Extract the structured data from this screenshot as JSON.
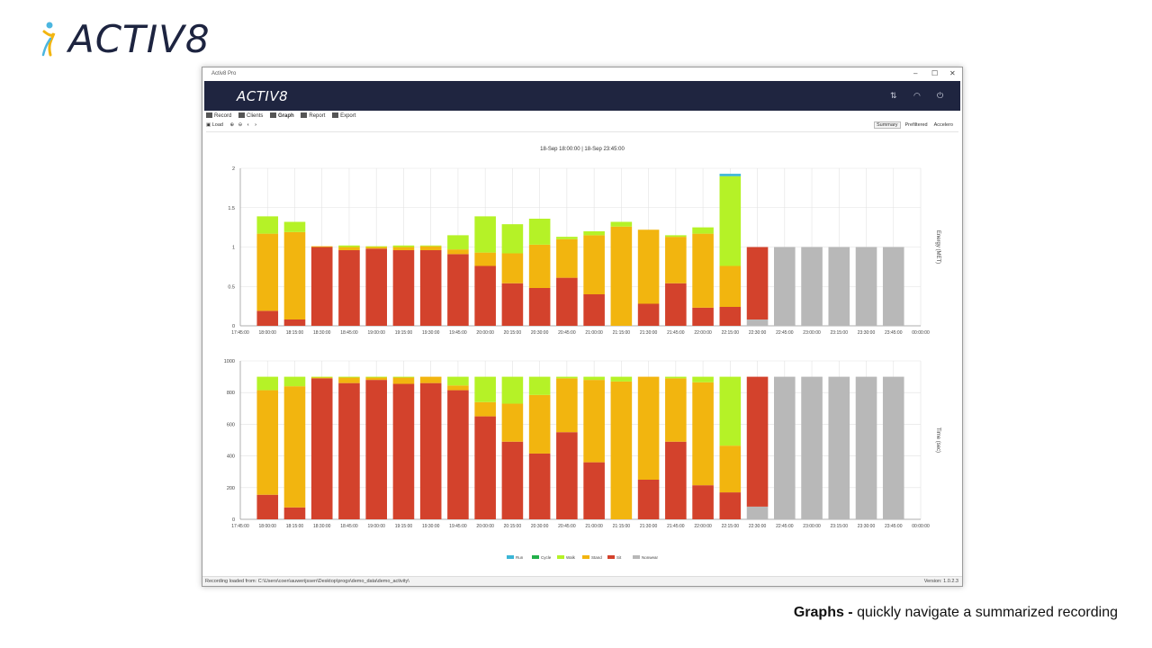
{
  "brand": {
    "name": "ACTIV8"
  },
  "caption": {
    "bold": "Graphs -",
    "text": " quickly navigate a summarized recording"
  },
  "window": {
    "title": "Activ8 Pro",
    "controls": {
      "minimize": "–",
      "maximize": "☐",
      "close": "✕"
    },
    "app_logo": "ACTIV8",
    "header_icons": [
      "sync-icon",
      "wifi-icon",
      "power-icon"
    ]
  },
  "menu": {
    "record": "Record",
    "clients": "Clients",
    "graph": "Graph",
    "report": "Report",
    "export": "Export"
  },
  "toolbar": {
    "load": "Load",
    "zoom_in": "⊕",
    "zoom_out": "⊖",
    "prev": "‹",
    "next": "›",
    "views": [
      "Summary",
      "Prefiltered",
      "Accelero"
    ],
    "selected_view": "Summary"
  },
  "status": {
    "path": "Recording loaded from: C:\\Users\\coen\\auwerijssen\\Desktop\\progs\\demo_data\\demo_activity\\",
    "version": "Version: 1.0.2.3"
  },
  "chart_data": {
    "type": "bar",
    "range_label": "18-Sep 18:00:00  |  18-Sep 23:45:00",
    "colors": {
      "Run": "#3bb6d6",
      "Cycle": "#22b04a",
      "Walk": "#b5f227",
      "Stand": "#f2b50f",
      "Sit": "#d3422c",
      "Nonwear": "#b8b8b8"
    },
    "legend": [
      "Run",
      "Cycle",
      "Walk",
      "Stand",
      "Sit",
      "Nonwear"
    ],
    "x_ticks": [
      "17:45:00",
      "18:00:00",
      "18:15:00",
      "18:30:00",
      "18:45:00",
      "19:00:00",
      "19:15:00",
      "19:30:00",
      "19:45:00",
      "20:00:00",
      "20:15:00",
      "20:30:00",
      "20:45:00",
      "21:00:00",
      "21:15:00",
      "21:30:00",
      "21:45:00",
      "22:00:00",
      "22:15:00",
      "22:30:00",
      "22:45:00",
      "23:00:00",
      "23:15:00",
      "23:30:00",
      "23:45:00",
      "00:00:00"
    ],
    "categories": [
      "18:00:00",
      "18:15:00",
      "18:30:00",
      "18:45:00",
      "19:00:00",
      "19:15:00",
      "19:30:00",
      "19:45:00",
      "20:00:00",
      "20:15:00",
      "20:30:00",
      "20:45:00",
      "21:00:00",
      "21:15:00",
      "21:30:00",
      "21:45:00",
      "22:00:00",
      "22:15:00",
      "22:30:00",
      "22:45:00",
      "23:00:00",
      "23:15:00",
      "23:30:00",
      "23:45:00"
    ],
    "charts": [
      {
        "ylabel": "Energy (MET)",
        "ylim": [
          0,
          2
        ],
        "y_ticks": [
          "0",
          "0.5",
          "1",
          "1.5",
          "2"
        ],
        "y_tick_values": [
          0,
          0.5,
          1,
          1.5,
          2
        ],
        "series": [
          {
            "name": "Nonwear",
            "values": [
              0,
              0,
              0,
              0,
              0,
              0,
              0,
              0,
              0,
              0,
              0,
              0,
              0,
              0,
              0,
              0,
              0,
              0,
              0.08,
              1,
              1,
              1,
              1,
              1
            ]
          },
          {
            "name": "Sit",
            "values": [
              0.19,
              0.08,
              1.0,
              0.96,
              0.98,
              0.96,
              0.96,
              0.91,
              0.76,
              0.54,
              0.48,
              0.61,
              0.4,
              0,
              0.28,
              0.54,
              0.23,
              0.24,
              0.92,
              0,
              0,
              0,
              0,
              0
            ]
          },
          {
            "name": "Stand",
            "values": [
              0.98,
              1.11,
              0.01,
              0.04,
              0.02,
              0.04,
              0.05,
              0.06,
              0.17,
              0.38,
              0.55,
              0.49,
              0.75,
              1.26,
              0.94,
              0.59,
              0.94,
              0.52,
              0,
              0,
              0,
              0,
              0,
              0
            ]
          },
          {
            "name": "Walk",
            "values": [
              0.22,
              0.13,
              0,
              0.02,
              0.01,
              0.02,
              0.01,
              0.18,
              0.46,
              0.37,
              0.33,
              0.03,
              0.05,
              0.06,
              0,
              0.02,
              0.08,
              1.14,
              0,
              0,
              0,
              0,
              0,
              0
            ]
          },
          {
            "name": "Cycle",
            "values": [
              0,
              0,
              0,
              0,
              0,
              0,
              0,
              0,
              0,
              0,
              0,
              0,
              0,
              0,
              0,
              0,
              0,
              0,
              0,
              0,
              0,
              0,
              0,
              0
            ]
          },
          {
            "name": "Run",
            "values": [
              0,
              0,
              0,
              0,
              0,
              0,
              0,
              0,
              0,
              0,
              0,
              0,
              0,
              0,
              0,
              0,
              0,
              0.03,
              0,
              0,
              0,
              0,
              0,
              0
            ]
          }
        ]
      },
      {
        "ylabel": "Time (sec)",
        "ylim": [
          0,
          1000
        ],
        "y_ticks": [
          "0",
          "200",
          "400",
          "600",
          "800",
          "1000"
        ],
        "y_tick_values": [
          0,
          200,
          400,
          600,
          800,
          1000
        ],
        "series": [
          {
            "name": "Nonwear",
            "values": [
              0,
              0,
              0,
              0,
              0,
              0,
              0,
              0,
              0,
              0,
              0,
              0,
              0,
              0,
              0,
              0,
              0,
              0,
              80,
              900,
              900,
              900,
              900,
              900
            ]
          },
          {
            "name": "Sit",
            "values": [
              155,
              75,
              890,
              860,
              880,
              855,
              860,
              815,
              650,
              490,
              415,
              550,
              360,
              0,
              250,
              490,
              215,
              170,
              820,
              0,
              0,
              0,
              0,
              0
            ]
          },
          {
            "name": "Stand",
            "values": [
              660,
              765,
              5,
              35,
              15,
              40,
              40,
              30,
              90,
              240,
              370,
              340,
              520,
              870,
              650,
              400,
              650,
              295,
              0,
              0,
              0,
              0,
              0,
              0
            ]
          },
          {
            "name": "Walk",
            "values": [
              85,
              60,
              5,
              5,
              5,
              5,
              0,
              55,
              160,
              170,
              115,
              10,
              20,
              30,
              0,
              10,
              35,
              435,
              0,
              0,
              0,
              0,
              0,
              0
            ]
          },
          {
            "name": "Cycle",
            "values": [
              0,
              0,
              0,
              0,
              0,
              0,
              0,
              0,
              0,
              0,
              0,
              0,
              0,
              0,
              0,
              0,
              0,
              0,
              0,
              0,
              0,
              0,
              0,
              0
            ]
          },
          {
            "name": "Run",
            "values": [
              0,
              0,
              0,
              0,
              0,
              0,
              0,
              0,
              0,
              0,
              0,
              0,
              0,
              0,
              0,
              0,
              0,
              0,
              0,
              0,
              0,
              0,
              0,
              0
            ]
          }
        ]
      }
    ]
  }
}
